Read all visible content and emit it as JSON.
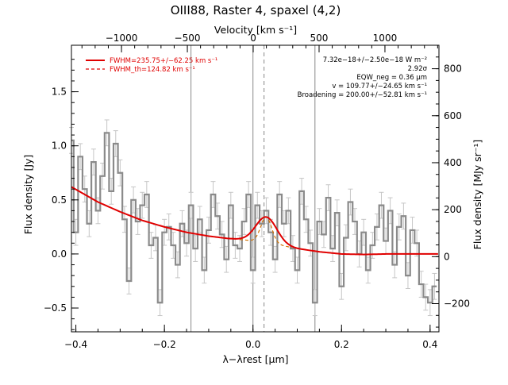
{
  "chart_data": {
    "type": "line",
    "title": "OIII88, Raster 4, spaxel (4,2)",
    "xlabel": "λ−λrest [μm]",
    "ylabel": "Flux density [Jy]",
    "top_xlabel": "Velocity [km s⁻¹]",
    "right_ylabel": "Flux density [MJy sr⁻¹]",
    "xlim": [
      -0.41,
      0.42
    ],
    "ylim": [
      -0.72,
      1.93
    ],
    "right_ylim": [
      -320,
      900
    ],
    "top_xlim": [
      -1380,
      1410
    ],
    "x_ticks": [
      -0.4,
      -0.2,
      0.0,
      0.2,
      0.4
    ],
    "x_tick_labels": [
      "−0.4",
      "−0.2",
      "0.0",
      "0.2",
      "0.4"
    ],
    "y_ticks": [
      -0.5,
      0.0,
      0.5,
      1.0,
      1.5
    ],
    "y_tick_labels": [
      "−0.5",
      "0.0",
      "0.5",
      "1.0",
      "1.5"
    ],
    "top_ticks": [
      -1000,
      -500,
      0,
      500,
      1000
    ],
    "top_tick_labels": [
      "−1000",
      "−500",
      "0",
      "500",
      "1000"
    ],
    "right_ticks": [
      -200,
      0,
      200,
      400,
      600,
      800
    ],
    "right_tick_labels": [
      "−200",
      "0",
      "200",
      "400",
      "600",
      "800"
    ],
    "vlines_solid": [
      -0.14,
      0.0,
      0.14
    ],
    "vline_dashed": 0.025,
    "spectrum": {
      "x": [
        -0.41,
        -0.4,
        -0.39,
        -0.38,
        -0.37,
        -0.36,
        -0.35,
        -0.34,
        -0.33,
        -0.32,
        -0.31,
        -0.3,
        -0.29,
        -0.28,
        -0.27,
        -0.26,
        -0.25,
        -0.24,
        -0.23,
        -0.22,
        -0.21,
        -0.2,
        -0.19,
        -0.18,
        -0.17,
        -0.16,
        -0.15,
        -0.14,
        -0.13,
        -0.12,
        -0.11,
        -0.1,
        -0.09,
        -0.08,
        -0.07,
        -0.06,
        -0.05,
        -0.04,
        -0.03,
        -0.02,
        -0.01,
        0.0,
        0.01,
        0.02,
        0.03,
        0.04,
        0.05,
        0.06,
        0.07,
        0.08,
        0.09,
        0.1,
        0.11,
        0.12,
        0.13,
        0.14,
        0.15,
        0.16,
        0.17,
        0.18,
        0.19,
        0.2,
        0.21,
        0.22,
        0.23,
        0.24,
        0.25,
        0.26,
        0.27,
        0.28,
        0.29,
        0.3,
        0.31,
        0.32,
        0.33,
        0.34,
        0.35,
        0.36,
        0.37,
        0.38,
        0.39,
        0.4,
        0.41
      ],
      "y": [
        1.05,
        0.2,
        0.9,
        0.6,
        0.28,
        0.85,
        0.4,
        0.72,
        1.12,
        0.58,
        1.02,
        0.75,
        0.32,
        -0.25,
        0.5,
        0.3,
        0.45,
        0.55,
        0.08,
        0.15,
        -0.45,
        0.2,
        0.25,
        0.08,
        -0.1,
        0.28,
        0.1,
        0.45,
        0.05,
        0.32,
        -0.15,
        0.22,
        0.55,
        0.35,
        0.18,
        -0.05,
        0.45,
        0.08,
        0.05,
        0.3,
        0.55,
        -0.15,
        0.45,
        0.28,
        0.4,
        0.2,
        -0.05,
        0.55,
        0.28,
        0.4,
        0.05,
        -0.15,
        0.58,
        0.32,
        0.1,
        -0.45,
        0.3,
        0.18,
        0.52,
        0.05,
        0.38,
        -0.3,
        0.15,
        0.48,
        0.3,
        0.0,
        0.2,
        -0.15,
        0.08,
        0.25,
        0.45,
        0.12,
        0.4,
        -0.1,
        0.25,
        0.35,
        -0.2,
        0.22,
        0.1,
        -0.28,
        -0.4,
        -0.45,
        -0.3
      ],
      "err": 0.12,
      "color": "#8a8a8a"
    },
    "baseline_fit": {
      "x": [
        -0.41,
        -0.35,
        -0.3,
        -0.25,
        -0.2,
        -0.15,
        -0.1,
        -0.06,
        -0.02,
        0.0,
        0.05,
        0.1,
        0.15,
        0.2,
        0.25,
        0.3,
        0.35,
        0.41
      ],
      "y": [
        0.62,
        0.48,
        0.39,
        0.31,
        0.25,
        0.2,
        0.165,
        0.145,
        0.13,
        0.12,
        0.09,
        0.05,
        0.02,
        0.0,
        -0.005,
        0.0,
        0.0,
        0.0
      ],
      "color": "#e00000"
    },
    "gaussian_fit": {
      "center": 0.03,
      "fwhm": 0.055,
      "amplitude": 0.24,
      "color": "#e00000"
    },
    "gaussian_th": {
      "center": 0.03,
      "fwhm": 0.029,
      "amplitude": 0.24,
      "color": "#d07000"
    },
    "legend": [
      {
        "label": "FWHM=235.75+/−62.25 km s⁻¹",
        "style": "solid"
      },
      {
        "label": "FWHM_th=124.82 km s⁻¹",
        "style": "dashed"
      }
    ],
    "annotations": [
      "7.32e−18+/−2.50e−18 W m⁻²",
      "2.92σ",
      "EQW_neg = 0.36 μm",
      "v = 109.77+/−24.65 km s⁻¹",
      "Broadening = 200.00+/−52.81 km s⁻¹"
    ]
  }
}
